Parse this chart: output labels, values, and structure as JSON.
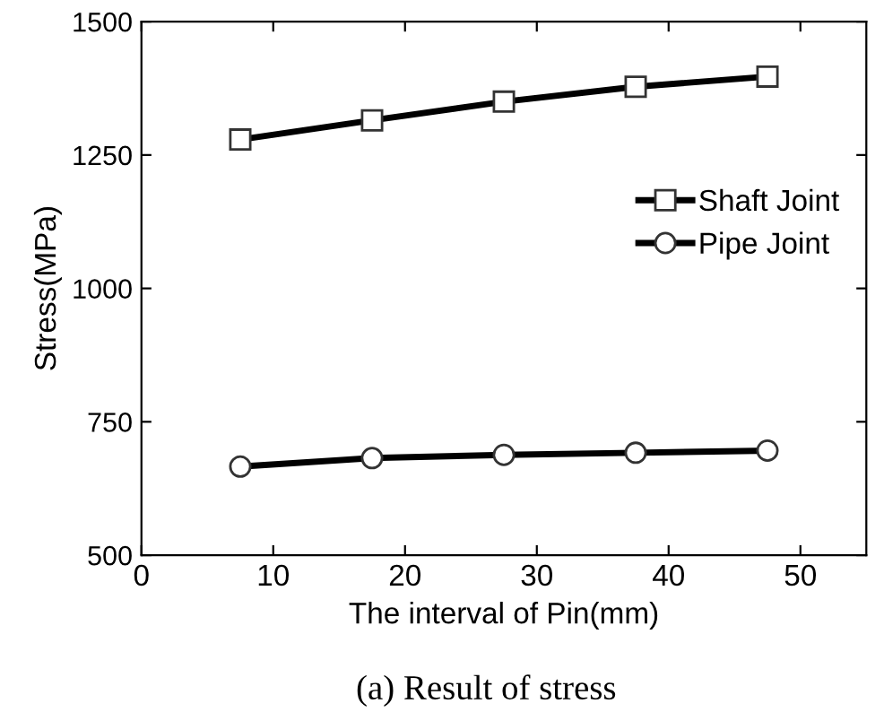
{
  "chart_data": {
    "type": "line",
    "xlabel": "The interval of Pin(mm)",
    "ylabel": "Stress(MPa)",
    "annotations": [
      "(a) Result of stress"
    ],
    "x": [
      7.5,
      17.5,
      27.5,
      37.5,
      47.5
    ],
    "series": [
      {
        "name": "Shaft Joint",
        "color": "#000000",
        "marker": "square",
        "values": [
          1279,
          1315,
          1350,
          1378,
          1397
        ]
      },
      {
        "name": "Pipe Joint",
        "color": "#000000",
        "marker": "circle",
        "values": [
          666,
          682,
          688,
          692,
          696
        ]
      }
    ],
    "xlim": [
      0,
      55
    ],
    "xticks": [
      0,
      10,
      20,
      30,
      40,
      50
    ],
    "ylim": [
      500,
      1500
    ],
    "yticks": [
      500,
      750,
      1000,
      1250,
      1500
    ],
    "grid": false,
    "legend": "right",
    "line_style": "solid"
  }
}
